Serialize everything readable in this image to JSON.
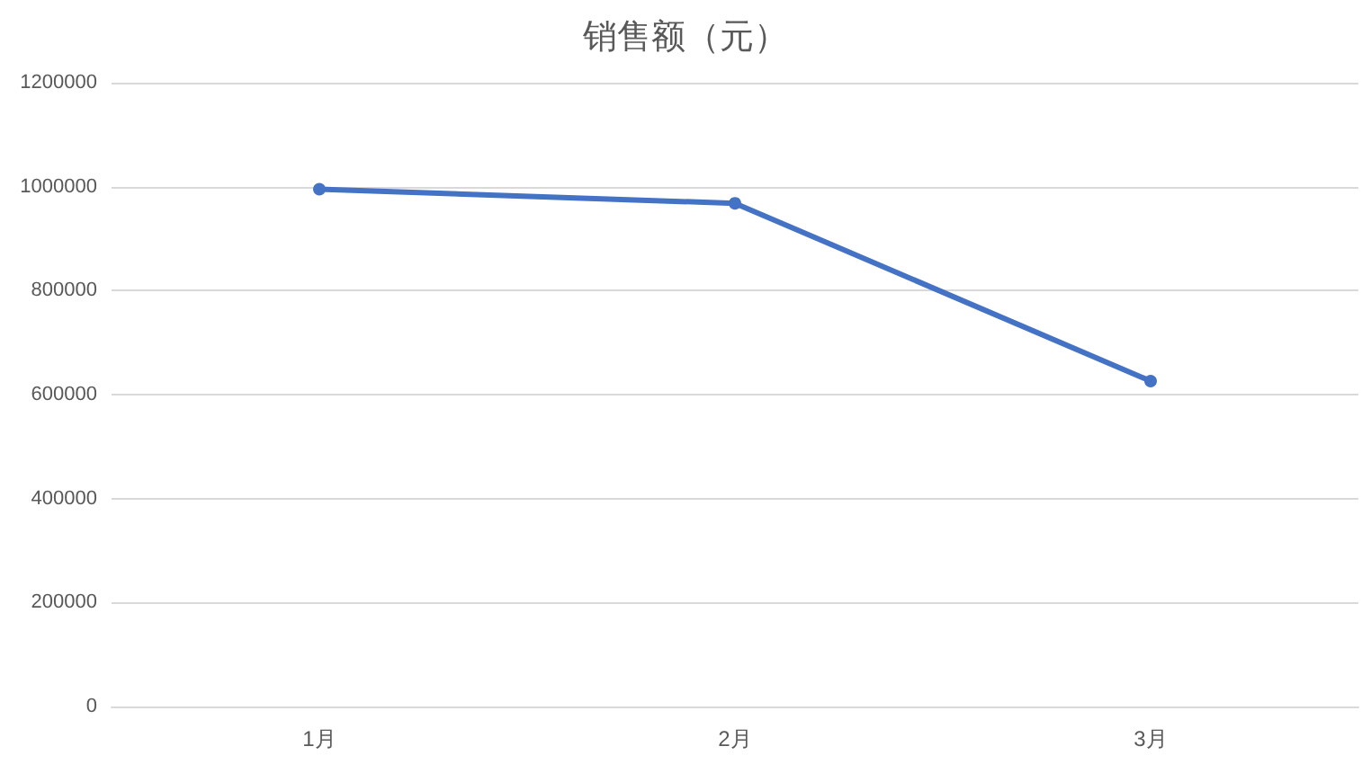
{
  "chart_data": {
    "type": "line",
    "title": "销售额（元）",
    "categories": [
      "1月",
      "2月",
      "3月"
    ],
    "series": [
      {
        "color": "#4472c4",
        "values": [
          995000,
          968000,
          626000
        ]
      }
    ],
    "ylim": [
      0,
      1200000
    ],
    "yticks": [
      0,
      200000,
      400000,
      600000,
      800000,
      1000000,
      1200000
    ],
    "grid": "y",
    "marker": "circle",
    "line_style": "solid"
  }
}
